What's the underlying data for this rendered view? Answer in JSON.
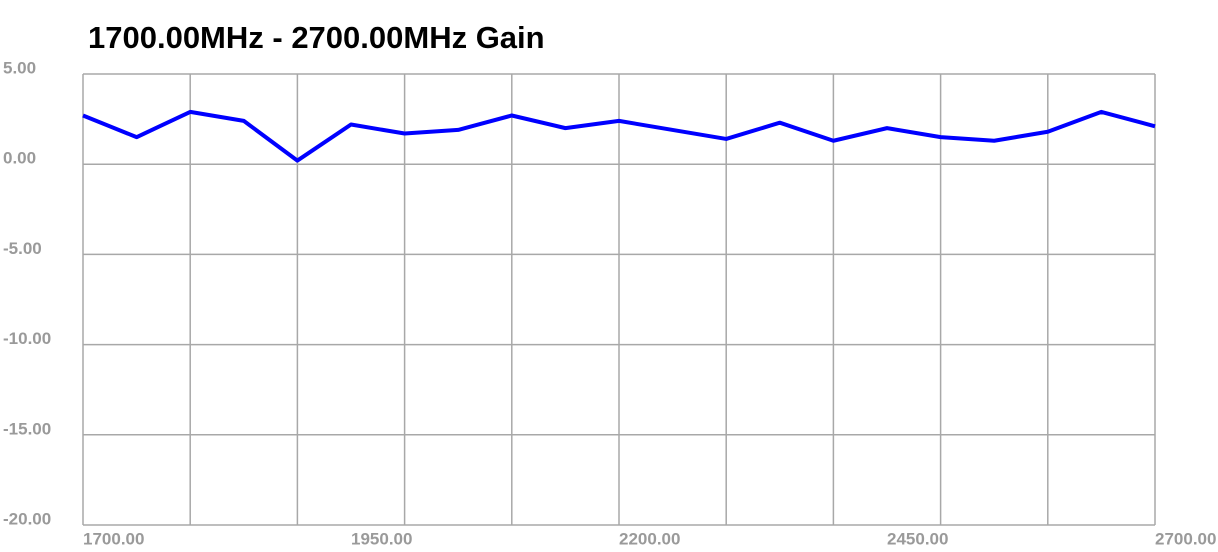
{
  "chart_data": {
    "type": "line",
    "title": "1700.00MHz - 2700.00MHz Gain",
    "x": [
      1700,
      1750,
      1800,
      1850,
      1900,
      1950,
      2000,
      2050,
      2100,
      2150,
      2200,
      2250,
      2300,
      2350,
      2400,
      2450,
      2500,
      2550,
      2600,
      2650,
      2700
    ],
    "series": [
      {
        "name": "Gain",
        "color": "#0000ff",
        "values": [
          2.7,
          1.5,
          2.9,
          2.4,
          0.2,
          2.2,
          1.7,
          1.9,
          2.7,
          2.0,
          2.4,
          1.9,
          1.4,
          2.3,
          1.3,
          2.0,
          1.5,
          1.3,
          1.8,
          2.9,
          2.1
        ]
      }
    ],
    "xlim": [
      1700,
      2700
    ],
    "xticks": [
      {
        "value": 1700,
        "label": "1700.00"
      },
      {
        "value": 1950,
        "label": "1950.00"
      },
      {
        "value": 2200,
        "label": "2200.00"
      },
      {
        "value": 2450,
        "label": "2450.00"
      },
      {
        "value": 2700,
        "label": "2700.00"
      }
    ],
    "xgrid": [
      1700,
      1800,
      1900,
      2000,
      2100,
      2200,
      2300,
      2400,
      2500,
      2600,
      2700
    ],
    "ylim": [
      -20,
      5
    ],
    "yticks": [
      {
        "value": 5,
        "label": "5.00"
      },
      {
        "value": 0,
        "label": "0.00"
      },
      {
        "value": -5,
        "label": "-5.00"
      },
      {
        "value": -10,
        "label": "-10.00"
      },
      {
        "value": -15,
        "label": "-15.00"
      },
      {
        "value": -20,
        "label": "-20.00"
      }
    ],
    "grid": true
  }
}
